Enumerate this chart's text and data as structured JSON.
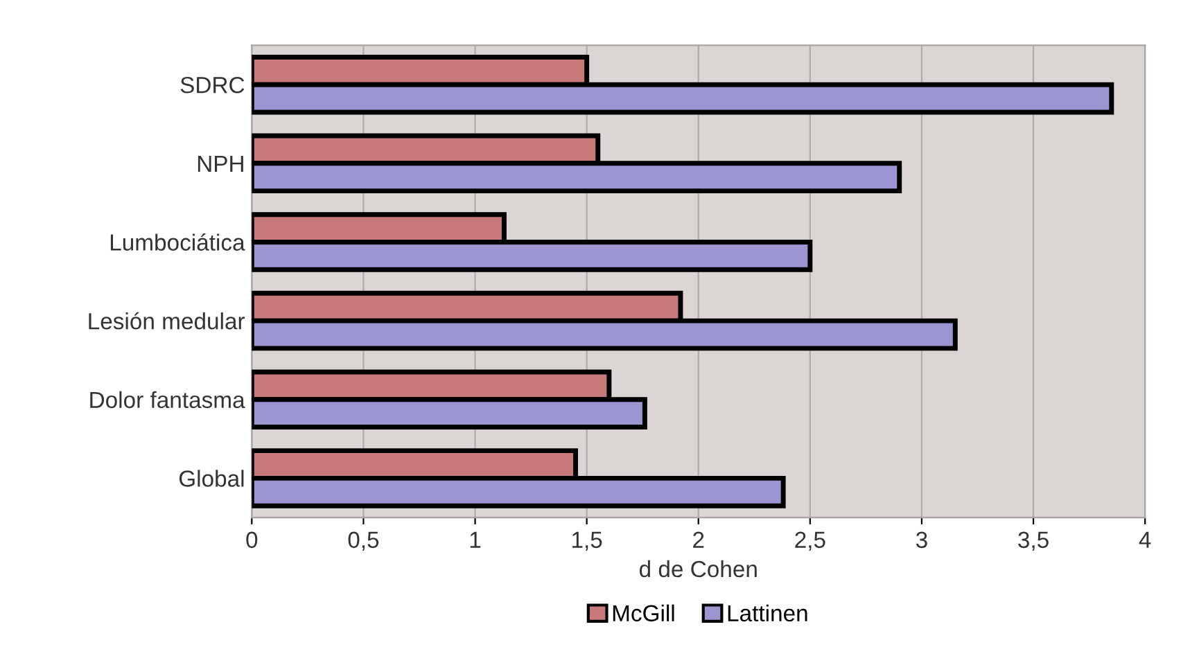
{
  "chart_data": {
    "type": "bar",
    "orientation": "horizontal",
    "xlabel": "d de Cohen",
    "categories": [
      "SDRC",
      "NPH",
      "Lumbociática",
      "Lesión medular",
      "Dolor fantasma",
      "Global"
    ],
    "series": [
      {
        "name": "McGill",
        "color": "#c87a7a",
        "values": [
          1.5,
          1.55,
          1.13,
          1.92,
          1.6,
          1.45
        ]
      },
      {
        "name": "Lattinen",
        "color": "#9b96d2",
        "values": [
          3.85,
          2.9,
          2.5,
          3.15,
          1.76,
          2.38
        ]
      }
    ],
    "xlim": [
      0,
      4
    ],
    "xticks": [
      0,
      {
        "value": 0.5,
        "label": "0,5"
      },
      1,
      {
        "value": 1.5,
        "label": "1,5"
      },
      2,
      {
        "value": 2.5,
        "label": "2,5"
      },
      3,
      {
        "value": 3.5,
        "label": "3,5"
      },
      4
    ],
    "grid": "x",
    "legend": "bottom"
  }
}
